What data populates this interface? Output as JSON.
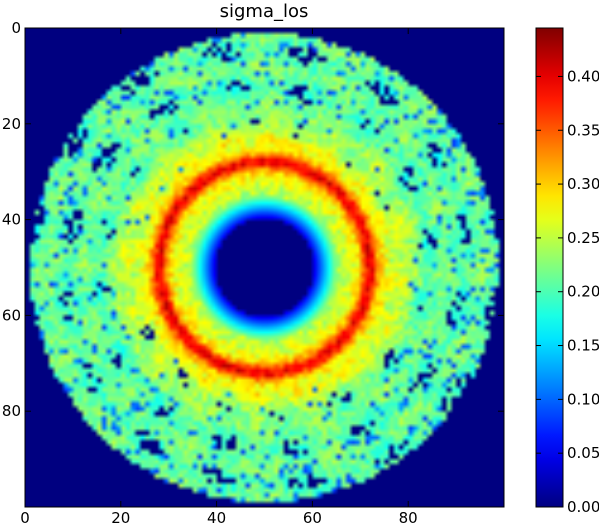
{
  "chart_data": {
    "type": "heatmap",
    "title": "sigma_los",
    "xlabel": "",
    "ylabel": "",
    "grid_size": [
      100,
      100
    ],
    "xlim": [
      0,
      100
    ],
    "ylim": [
      100,
      0
    ],
    "x_ticks": [
      0,
      20,
      40,
      60,
      80
    ],
    "y_ticks": [
      0,
      20,
      40,
      60,
      80
    ],
    "colormap": "jet",
    "background_color": "#00007f",
    "color_range": [
      0.0,
      0.445
    ],
    "colorbar_ticks": [
      "0.00",
      "0.05",
      "0.10",
      "0.15",
      "0.20",
      "0.25",
      "0.30",
      "0.35",
      "0.40"
    ],
    "colorbar_tick_values": [
      0.0,
      0.05,
      0.1,
      0.15,
      0.2,
      0.25,
      0.3,
      0.35,
      0.4
    ],
    "field": {
      "center": [
        50,
        50
      ],
      "disk_radius": 49,
      "hole_radius": 10.5,
      "ring_radius": 22,
      "ring_peak_value": 0.4,
      "ring_base_value": 0.3,
      "outer_value": 0.21,
      "inner_ramp_end_radius": 15
    }
  }
}
